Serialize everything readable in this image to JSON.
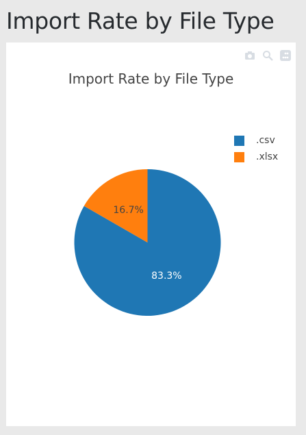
{
  "page": {
    "heading": "Import Rate by File Type"
  },
  "modebar": {
    "icons": [
      "camera-icon",
      "zoom-icon",
      "plotly-logo-icon"
    ]
  },
  "chart_data": {
    "type": "pie",
    "title": "Import Rate by File Type",
    "labels": [
      ".csv",
      ".xlsx"
    ],
    "values": [
      83.3,
      16.7
    ],
    "value_labels": [
      "83.3%",
      "16.7%"
    ],
    "colors": [
      "#1f77b4",
      "#ff7f0e"
    ],
    "text_colors": [
      "#ffffff",
      "#444444"
    ],
    "legend_position": "top-right",
    "start_angle_deg": 90,
    "direction": "clockwise"
  }
}
